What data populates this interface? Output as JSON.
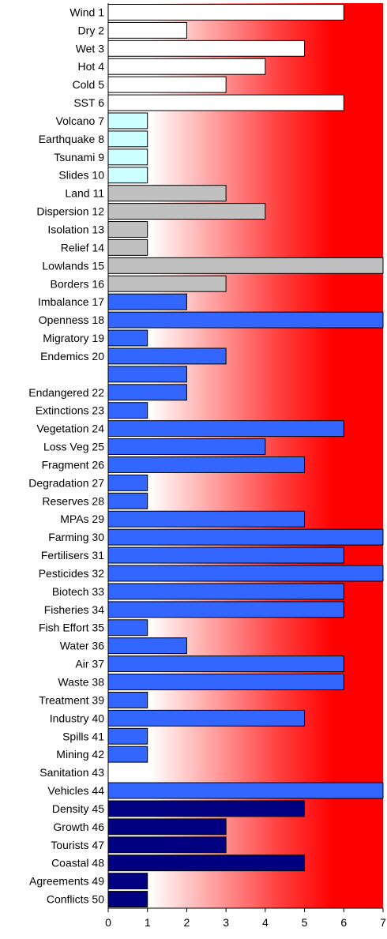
{
  "chart_data": {
    "type": "bar",
    "orientation": "horizontal",
    "categories": [
      "Wind 1",
      "Dry 2",
      "Wet 3",
      "Hot 4",
      "Cold 5",
      "SST 6",
      "Volcano 7",
      "Earthquake 8",
      "Tsunami 9",
      "Slides 10",
      "Land 11",
      "Dispersion 12",
      "Isolation 13",
      "Relief 14",
      "Lowlands 15",
      "Borders 16",
      "Imbalance 17",
      "Openness 18",
      "Migratory 19",
      "Endemics 20",
      "",
      "Endangered 22",
      "Extinctions 23",
      "Vegetation 24",
      "Loss Veg 25",
      "Fragment 26",
      "Degradation 27",
      "Reserves 28",
      "MPAs 29",
      "Farming 30",
      "Fertilisers 31",
      "Pesticides 32",
      "Biotech 33",
      "Fisheries 34",
      "Fish Effort 35",
      "Water 36",
      "Air 37",
      "Waste 38",
      "Treatment 39",
      "Industry 40",
      "Spills 41",
      "Mining 42",
      "Sanitation 43",
      "Vehicles 44",
      "Density 45",
      "Growth 46",
      "Tourists 47",
      "Coastal 48",
      "Agreements 49",
      "Conflicts 50"
    ],
    "values": [
      6,
      2,
      5,
      4,
      3,
      6,
      1,
      1,
      1,
      1,
      3,
      4,
      1,
      1,
      7,
      3,
      2,
      7,
      1,
      3,
      2,
      2,
      1,
      6,
      4,
      5,
      1,
      1,
      5,
      7,
      6,
      7,
      6,
      6,
      1,
      2,
      6,
      6,
      1,
      5,
      1,
      1,
      0,
      7,
      5,
      3,
      3,
      5,
      1,
      1
    ],
    "groups": [
      {
        "name": "",
        "start": 1,
        "end": 6,
        "color": "#ffffff"
      },
      {
        "name": "",
        "start": 7,
        "end": 10,
        "color": "#ccffff"
      },
      {
        "name": "",
        "start": 11,
        "end": 16,
        "color": "#c0c0c0"
      },
      {
        "name": "",
        "start": 17,
        "end": 44,
        "color": "#3366ff"
      },
      {
        "name": "",
        "start": 45,
        "end": 50,
        "color": "#000080"
      }
    ],
    "x_ticks": [
      0,
      1,
      2,
      3,
      4,
      5,
      6,
      7
    ],
    "xlim": [
      0,
      7
    ],
    "title": "",
    "xlabel": "",
    "ylabel": "",
    "grid": false,
    "legend": "none",
    "background_gradient": [
      "#ffffff",
      "#ff0000"
    ]
  }
}
